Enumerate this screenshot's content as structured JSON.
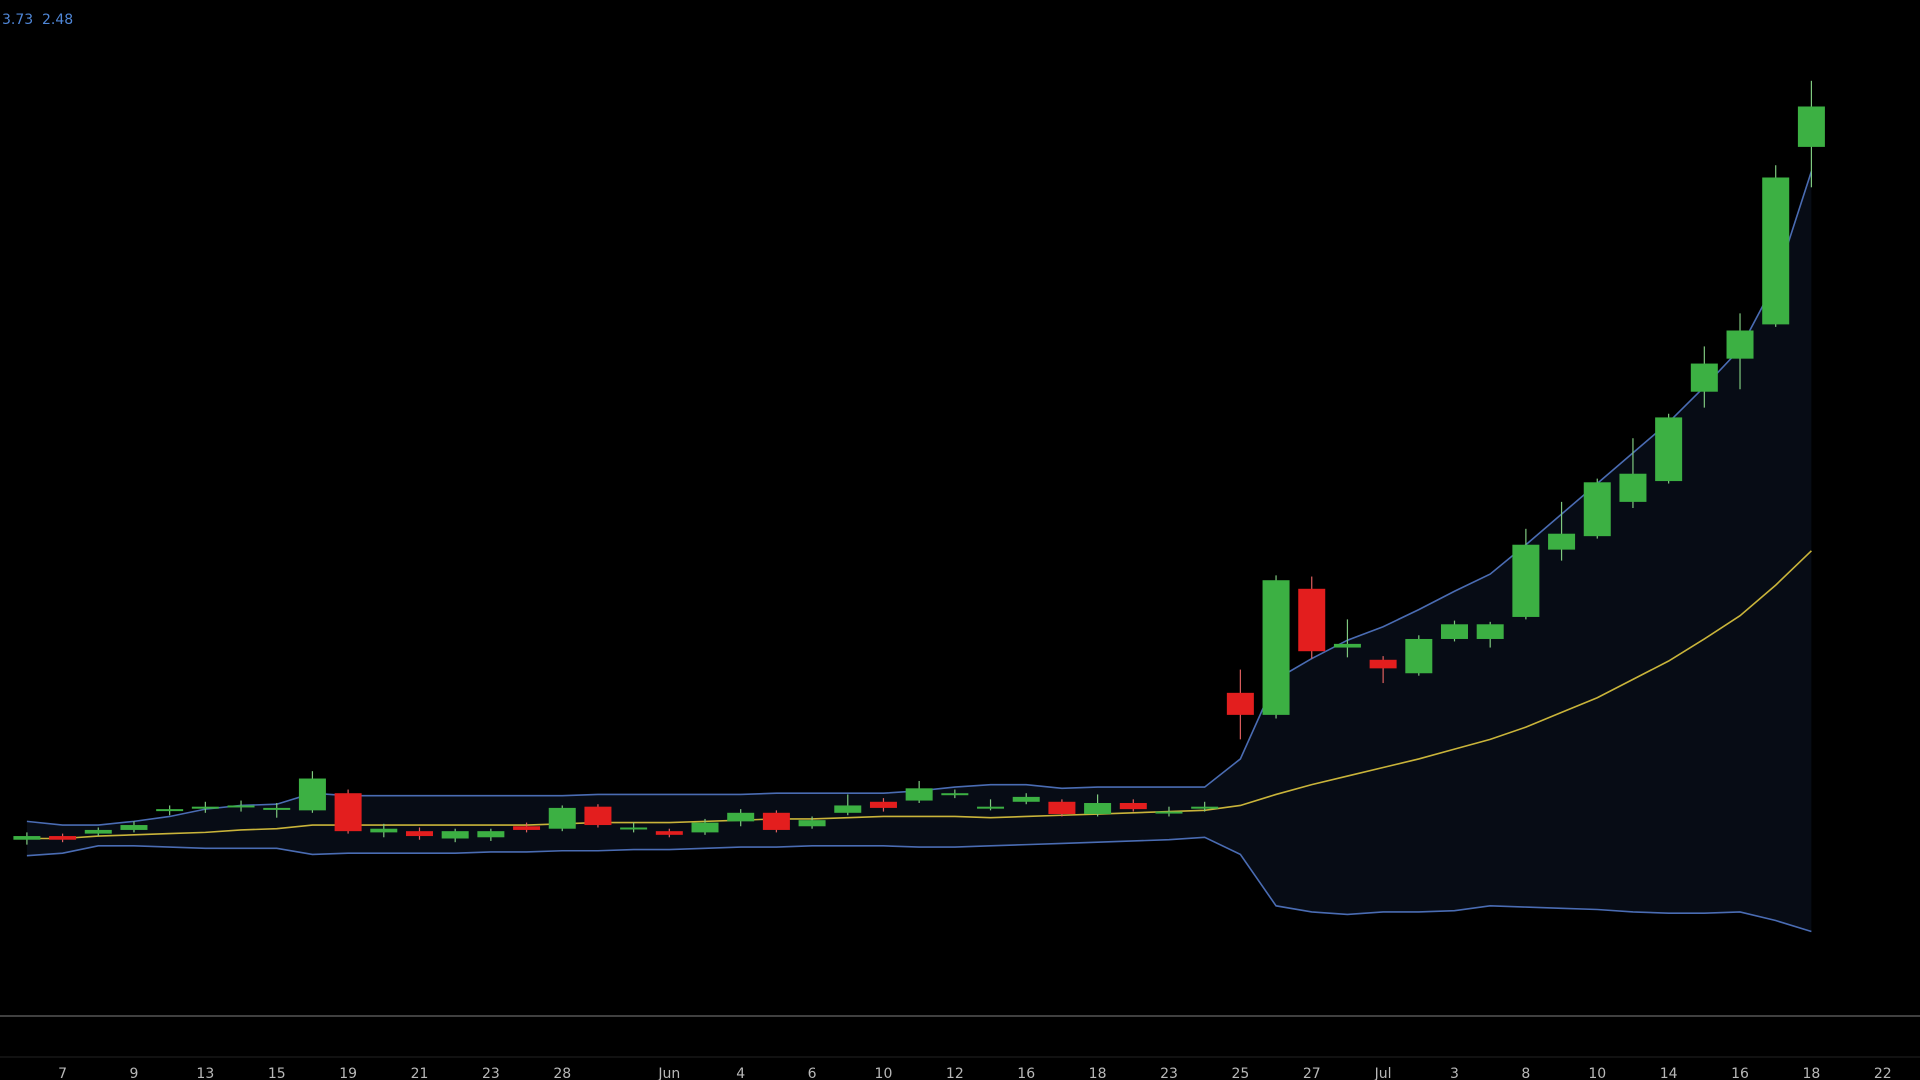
{
  "chart_data": {
    "type": "candlestick",
    "legend_values": [
      3.73,
      2.48
    ],
    "categories": [
      null,
      "7",
      null,
      "9",
      null,
      "13",
      null,
      "15",
      null,
      "19",
      null,
      "21",
      null,
      "23",
      null,
      "28",
      null,
      null,
      "Jun",
      null,
      "4",
      null,
      "6",
      null,
      "10",
      null,
      "12",
      null,
      "16",
      null,
      "18",
      null,
      "23",
      null,
      "25",
      null,
      "27",
      null,
      "Jul",
      null,
      "3",
      null,
      "8",
      null,
      "10",
      null,
      "14",
      null,
      "16",
      null,
      "18",
      null,
      "22"
    ],
    "open": [
      1.44,
      1.47,
      1.49,
      1.52,
      1.68,
      1.7,
      1.71,
      1.69,
      1.68,
      1.82,
      1.5,
      1.51,
      1.45,
      1.46,
      1.55,
      1.53,
      1.71,
      1.53,
      1.51,
      1.5,
      1.59,
      1.66,
      1.55,
      1.66,
      1.75,
      1.76,
      1.81,
      1.7,
      1.75,
      1.75,
      1.65,
      1.74,
      1.66,
      1.7,
      2.64,
      2.46,
      3.49,
      3.01,
      2.91,
      2.8,
      3.08,
      3.08,
      3.26,
      3.81,
      3.92,
      4.2,
      4.37,
      5.1,
      5.37,
      5.65,
      7.1,
      null,
      null
    ],
    "high": [
      1.5,
      1.49,
      1.54,
      1.59,
      1.72,
      1.75,
      1.76,
      1.74,
      2.0,
      1.85,
      1.57,
      1.54,
      1.53,
      1.53,
      1.58,
      1.72,
      1.73,
      1.58,
      1.53,
      1.61,
      1.69,
      1.68,
      1.63,
      1.81,
      1.78,
      1.92,
      1.85,
      1.77,
      1.82,
      1.77,
      1.81,
      1.77,
      1.71,
      1.75,
      2.83,
      3.6,
      3.59,
      3.24,
      2.94,
      3.11,
      3.23,
      3.22,
      3.98,
      4.2,
      4.39,
      4.72,
      4.92,
      5.47,
      5.74,
      6.95,
      7.64,
      null,
      null
    ],
    "low": [
      1.4,
      1.42,
      1.47,
      1.5,
      1.64,
      1.66,
      1.67,
      1.62,
      1.66,
      1.49,
      1.46,
      1.44,
      1.42,
      1.43,
      1.5,
      1.51,
      1.54,
      1.5,
      1.46,
      1.48,
      1.55,
      1.5,
      1.53,
      1.64,
      1.67,
      1.74,
      1.78,
      1.68,
      1.73,
      1.63,
      1.63,
      1.67,
      1.63,
      1.67,
      2.26,
      2.43,
      2.92,
      2.93,
      2.72,
      2.78,
      3.06,
      3.01,
      3.24,
      3.72,
      3.9,
      4.15,
      4.35,
      4.97,
      5.12,
      5.63,
      6.77,
      null,
      null
    ],
    "close": [
      1.47,
      1.44,
      1.52,
      1.56,
      1.69,
      1.71,
      1.72,
      1.7,
      1.94,
      1.51,
      1.53,
      1.47,
      1.51,
      1.51,
      1.52,
      1.7,
      1.56,
      1.54,
      1.48,
      1.58,
      1.66,
      1.52,
      1.6,
      1.72,
      1.7,
      1.86,
      1.82,
      1.71,
      1.79,
      1.65,
      1.74,
      1.69,
      1.67,
      1.71,
      2.46,
      3.56,
      2.98,
      3.04,
      2.84,
      3.08,
      3.2,
      3.2,
      3.85,
      3.94,
      4.36,
      4.43,
      4.89,
      5.33,
      5.6,
      6.85,
      7.43,
      null,
      null
    ],
    "up_color": "#3cb043",
    "down_color": "#e31e1e",
    "band_fill": "#070c15",
    "bands": [
      {
        "color": "#4a6cb3",
        "values": [
          1.59,
          1.56,
          1.56,
          1.59,
          1.63,
          1.69,
          1.72,
          1.73,
          1.82,
          1.8,
          1.8,
          1.8,
          1.8,
          1.8,
          1.8,
          1.8,
          1.81,
          1.81,
          1.81,
          1.81,
          1.81,
          1.82,
          1.82,
          1.82,
          1.82,
          1.84,
          1.87,
          1.89,
          1.89,
          1.86,
          1.87,
          1.87,
          1.87,
          1.87,
          2.1,
          2.75,
          2.92,
          3.07,
          3.18,
          3.32,
          3.47,
          3.61,
          3.85,
          4.1,
          4.35,
          4.6,
          4.85,
          5.14,
          5.45,
          6.0,
          6.9,
          null,
          null
        ]
      },
      {
        "color": "#c9b43a",
        "values": [
          1.45,
          1.45,
          1.47,
          1.48,
          1.49,
          1.5,
          1.52,
          1.53,
          1.56,
          1.56,
          1.56,
          1.56,
          1.56,
          1.56,
          1.56,
          1.57,
          1.58,
          1.58,
          1.58,
          1.59,
          1.6,
          1.61,
          1.61,
          1.62,
          1.63,
          1.63,
          1.63,
          1.62,
          1.63,
          1.64,
          1.65,
          1.66,
          1.67,
          1.68,
          1.72,
          1.81,
          1.89,
          1.96,
          2.03,
          2.1,
          2.18,
          2.26,
          2.36,
          2.48,
          2.6,
          2.75,
          2.9,
          3.08,
          3.27,
          3.52,
          3.8,
          null,
          null
        ]
      },
      {
        "color": "#4a6cb3",
        "values": [
          1.31,
          1.33,
          1.39,
          1.39,
          1.38,
          1.37,
          1.37,
          1.37,
          1.32,
          1.33,
          1.33,
          1.33,
          1.33,
          1.34,
          1.34,
          1.35,
          1.35,
          1.36,
          1.36,
          1.37,
          1.38,
          1.38,
          1.39,
          1.39,
          1.39,
          1.38,
          1.38,
          1.39,
          1.4,
          1.41,
          1.42,
          1.43,
          1.44,
          1.46,
          1.32,
          0.9,
          0.85,
          0.83,
          0.85,
          0.85,
          0.86,
          0.9,
          0.89,
          0.88,
          0.87,
          0.85,
          0.84,
          0.84,
          0.85,
          0.78,
          0.69,
          null,
          null
        ]
      }
    ],
    "ylim": [
      0,
      8.3
    ]
  }
}
